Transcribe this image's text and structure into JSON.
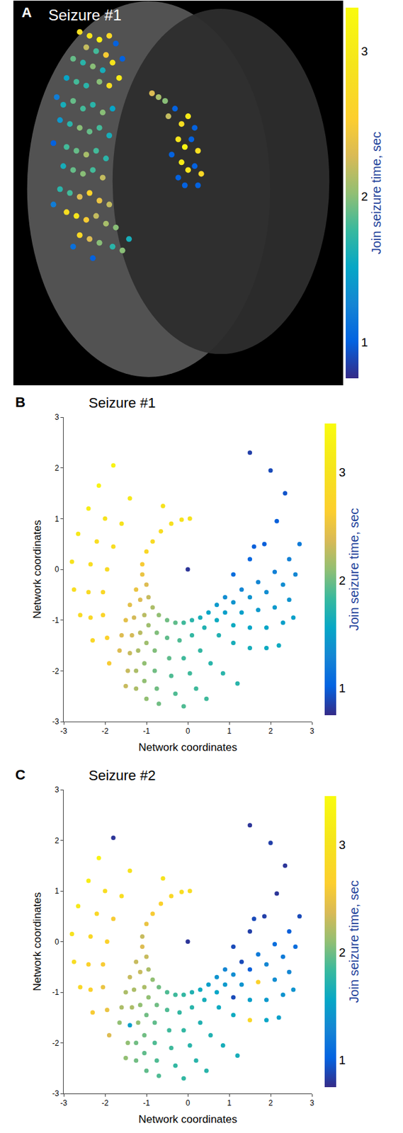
{
  "chart_data": [
    {
      "type": "scatter",
      "panel": "A",
      "title": "Seizure #1",
      "grid": false,
      "tick_labels": false,
      "xlim": [
        0,
        100
      ],
      "ylim": [
        0,
        100
      ],
      "color_label": "Join seizure time, sec",
      "color_range": [
        0.75,
        3.3
      ],
      "color_ticks": [
        1,
        2,
        3
      ],
      "x": [
        20,
        23,
        26,
        29,
        31,
        22,
        25,
        28,
        18,
        21,
        30,
        33,
        24,
        27,
        16,
        19,
        22,
        26,
        29,
        32,
        13,
        15,
        18,
        21,
        24,
        27,
        30,
        14,
        17,
        20,
        23,
        26,
        29,
        12,
        16,
        19,
        22,
        25,
        28,
        15,
        18,
        21,
        24,
        27,
        14,
        17,
        20,
        23,
        26,
        29,
        16,
        19,
        22,
        25,
        28,
        31,
        20,
        23,
        26,
        30,
        33,
        12,
        18,
        24,
        35,
        47,
        49,
        51,
        53,
        55,
        50,
        52,
        54,
        56,
        48,
        51,
        53,
        55,
        57,
        50,
        52,
        46,
        42,
        44,
        56
      ],
      "y": [
        92,
        91,
        90,
        91,
        89,
        88,
        87,
        86,
        85,
        84,
        84,
        85,
        83,
        82,
        80,
        79,
        78,
        79,
        78,
        80,
        75,
        73,
        74,
        72,
        73,
        71,
        72,
        69,
        68,
        67,
        66,
        67,
        65,
        63,
        62,
        61,
        60,
        61,
        59,
        57,
        56,
        55,
        56,
        54,
        51,
        50,
        49,
        50,
        48,
        47,
        45,
        44,
        43,
        44,
        42,
        41,
        39,
        38,
        37,
        36,
        35,
        47,
        36,
        33,
        38,
        70,
        72,
        68,
        70,
        67,
        64,
        62,
        64,
        61,
        60,
        58,
        56,
        57,
        55,
        54,
        52,
        74,
        76,
        75,
        52
      ],
      "join_time": [
        2.8,
        2.9,
        3.1,
        2.7,
        1.0,
        2.2,
        1.8,
        2.5,
        1.9,
        1.7,
        2.9,
        1.0,
        2.0,
        1.6,
        1.5,
        1.8,
        1.7,
        2.0,
        2.8,
        3.0,
        1.2,
        1.6,
        1.9,
        1.8,
        1.7,
        2.0,
        1.5,
        1.4,
        1.7,
        2.0,
        1.9,
        1.8,
        1.6,
        1.0,
        1.8,
        1.9,
        2.1,
        1.8,
        1.7,
        1.6,
        1.9,
        2.0,
        1.8,
        2.2,
        1.7,
        1.8,
        2.3,
        2.6,
        2.4,
        2.2,
        2.8,
        2.9,
        2.5,
        2.2,
        2.1,
        2.0,
        2.7,
        2.3,
        2.0,
        1.7,
        2.0,
        1.2,
        1.1,
        1.0,
        1.6,
        2.2,
        1.0,
        2.8,
        3.0,
        1.0,
        2.9,
        3.2,
        1.0,
        2.8,
        1.0,
        3.0,
        2.9,
        1.0,
        2.7,
        1.0,
        1.0,
        2.0,
        2.3,
        2.1,
        1.0
      ]
    },
    {
      "type": "scatter",
      "panel": "B",
      "title": "Seizure #1",
      "grid": false,
      "xlabel": "Network coordinates",
      "ylabel": "Network coordinates",
      "xlim": [
        -3,
        3
      ],
      "ylim": [
        -3,
        3
      ],
      "xticks": [
        -3,
        -2,
        -1,
        0,
        1,
        2,
        3
      ],
      "yticks": [
        -3,
        -2,
        -1,
        0,
        1,
        2,
        3
      ],
      "color_label": "Join seizure time, sec",
      "color_range": [
        0.75,
        3.45
      ],
      "color_ticks": [
        1,
        2,
        3
      ],
      "x": [
        -1.1,
        -1.0,
        -0.85,
        -0.65,
        -0.4,
        -0.15,
        0.05,
        -1.8,
        -2.15,
        -2.4,
        -2.65,
        -2.8,
        -2.75,
        -2.6,
        -1.4,
        -0.6,
        -2.0,
        -2.2,
        -2.35,
        -2.4,
        -2.35,
        -2.3,
        -1.6,
        -1.8,
        -1.95,
        -2.05,
        -2.05,
        -1.95,
        -1.9,
        0,
        -1.1,
        -1.25,
        -1.4,
        -1.5,
        -1.6,
        -1.65,
        -1.0,
        -1.15,
        -1.3,
        -1.35,
        -1.4,
        -1.45,
        -1.5,
        -0.95,
        -1.05,
        -1.15,
        -1.2,
        -1.25,
        -1.25,
        -0.85,
        -0.95,
        -1.0,
        -1.05,
        -1.05,
        -1.0,
        -0.7,
        -0.75,
        -0.8,
        -0.8,
        -0.75,
        -0.7,
        -0.5,
        -0.5,
        -0.45,
        -0.4,
        -0.3,
        -0.1,
        -0.3,
        -0.2,
        -0.1,
        0.05,
        0.2,
        0.45,
        -0.1,
        0.1,
        0.3,
        0.55,
        0.85,
        1.2,
        0.1,
        0.4,
        0.75,
        1.1,
        1.5,
        1.9,
        2.2,
        0.3,
        0.7,
        1.1,
        1.5,
        1.9,
        2.3,
        2.55,
        0.5,
        0.9,
        1.3,
        1.7,
        2.1,
        2.45,
        0.7,
        1.1,
        1.5,
        1.9,
        2.3,
        2.6,
        0.9,
        1.3,
        1.7,
        2.1,
        2.45,
        2.7,
        1.1,
        1.5,
        1.85,
        2.15,
        2.35,
        2.0,
        1.5,
        1.6
      ],
      "y": [
        0.1,
        0.35,
        0.55,
        0.75,
        0.9,
        0.98,
        1.0,
        2.05,
        1.65,
        1.2,
        0.7,
        0.15,
        -0.4,
        -0.9,
        1.4,
        1.25,
        1.0,
        0.55,
        0.1,
        -0.45,
        -0.95,
        -1.4,
        0.9,
        0.45,
        0.0,
        -0.45,
        -0.9,
        -1.35,
        -1.85,
        0,
        -0.1,
        -0.4,
        -0.7,
        -1.0,
        -1.3,
        -1.6,
        -0.3,
        -0.6,
        -0.95,
        -1.3,
        -1.65,
        -2.0,
        -2.3,
        -0.55,
        -0.9,
        -1.25,
        -1.6,
        -2.0,
        -2.35,
        -0.75,
        -1.1,
        -1.45,
        -1.85,
        -2.2,
        -2.55,
        -0.9,
        -1.25,
        -1.6,
        -2.0,
        -2.35,
        -2.65,
        -1.0,
        -1.35,
        -1.75,
        -2.1,
        -2.45,
        -2.7,
        -1.05,
        -1.4,
        -1.75,
        -2.05,
        -2.35,
        -2.55,
        -1.05,
        -1.3,
        -1.6,
        -1.85,
        -2.05,
        -2.25,
        -1.0,
        -1.15,
        -1.3,
        -1.45,
        -1.55,
        -1.55,
        -1.5,
        -0.95,
        -1.0,
        -1.1,
        -1.15,
        -1.15,
        -1.05,
        -0.95,
        -0.85,
        -0.85,
        -0.85,
        -0.8,
        -0.75,
        -0.6,
        -0.7,
        -0.65,
        -0.55,
        -0.45,
        -0.3,
        -0.1,
        -0.55,
        -0.4,
        -0.25,
        -0.05,
        0.2,
        0.5,
        -0.1,
        0.2,
        0.5,
        0.95,
        1.5,
        1.95,
        2.3,
        0.45
      ],
      "join_time": [
        2.6,
        2.8,
        2.85,
        2.9,
        2.95,
        3.0,
        3.0,
        3.3,
        3.3,
        3.2,
        3.1,
        3.0,
        2.9,
        2.85,
        3.1,
        3.0,
        3.0,
        2.9,
        2.9,
        2.85,
        2.8,
        2.8,
        3.0,
        2.9,
        2.85,
        2.8,
        2.75,
        2.7,
        2.6,
        0.8,
        2.5,
        2.5,
        2.45,
        2.45,
        2.4,
        2.4,
        2.4,
        2.4,
        2.35,
        2.35,
        2.3,
        2.3,
        2.3,
        2.3,
        2.25,
        2.25,
        2.2,
        2.2,
        2.2,
        2.2,
        2.15,
        2.15,
        2.1,
        2.1,
        2.1,
        2.1,
        2.05,
        2.05,
        2.0,
        2.0,
        2.0,
        2.0,
        1.95,
        1.95,
        1.9,
        1.9,
        1.9,
        1.95,
        1.9,
        1.85,
        1.85,
        1.85,
        1.85,
        1.85,
        1.8,
        1.8,
        1.75,
        1.75,
        1.75,
        1.75,
        1.7,
        1.7,
        1.65,
        1.65,
        1.6,
        1.6,
        1.65,
        1.6,
        1.6,
        1.55,
        1.55,
        1.5,
        1.5,
        1.55,
        1.5,
        1.5,
        1.45,
        1.45,
        1.4,
        1.45,
        1.4,
        1.4,
        1.35,
        1.35,
        1.3,
        1.35,
        1.3,
        1.3,
        1.25,
        1.25,
        1.2,
        1.1,
        1.05,
        1.0,
        1.0,
        0.95,
        0.9,
        0.85,
        1.0
      ]
    },
    {
      "type": "scatter",
      "panel": "C",
      "title": "Seizure #2",
      "grid": false,
      "xlabel": "Network coordinates",
      "ylabel": "Network coordinates",
      "xlim": [
        -3,
        3
      ],
      "ylim": [
        -3,
        3
      ],
      "xticks": [
        -3,
        -2,
        -1,
        0,
        1,
        2,
        3
      ],
      "yticks": [
        -3,
        -2,
        -1,
        0,
        1,
        2,
        3
      ],
      "color_label": "Join seizure time, sec",
      "color_range": [
        0.75,
        3.45
      ],
      "color_ticks": [
        1,
        2,
        3
      ],
      "x": [
        -1.1,
        -1.0,
        -0.85,
        -0.65,
        -0.4,
        -0.15,
        0.05,
        -1.8,
        -2.15,
        -2.4,
        -2.65,
        -2.8,
        -2.75,
        -2.6,
        -1.4,
        -0.6,
        -2.0,
        -2.2,
        -2.35,
        -2.4,
        -2.35,
        -2.3,
        -1.6,
        -1.8,
        -1.95,
        -2.05,
        -2.05,
        -1.95,
        -1.9,
        0,
        -1.1,
        -1.25,
        -1.4,
        -1.5,
        -1.6,
        -1.65,
        -1.0,
        -1.15,
        -1.3,
        -1.35,
        -1.4,
        -1.45,
        -1.5,
        -0.95,
        -1.05,
        -1.15,
        -1.2,
        -1.25,
        -1.25,
        -0.85,
        -0.95,
        -1.0,
        -1.05,
        -1.05,
        -1.0,
        -0.7,
        -0.75,
        -0.8,
        -0.8,
        -0.75,
        -0.7,
        -0.5,
        -0.5,
        -0.45,
        -0.4,
        -0.3,
        -0.1,
        -0.3,
        -0.2,
        -0.1,
        0.05,
        0.2,
        0.45,
        -0.1,
        0.1,
        0.3,
        0.55,
        0.85,
        1.2,
        0.1,
        0.4,
        0.75,
        1.1,
        1.5,
        1.9,
        2.2,
        0.3,
        0.7,
        1.1,
        1.5,
        1.9,
        2.3,
        2.55,
        0.5,
        0.9,
        1.3,
        1.7,
        2.1,
        2.45,
        0.7,
        1.1,
        1.5,
        1.9,
        2.3,
        2.6,
        0.9,
        1.3,
        1.7,
        2.1,
        2.45,
        2.7,
        1.1,
        1.5,
        1.85,
        2.15,
        2.35,
        2.0,
        1.5,
        1.6
      ],
      "y": [
        0.1,
        0.35,
        0.55,
        0.75,
        0.9,
        0.98,
        1.0,
        2.05,
        1.65,
        1.2,
        0.7,
        0.15,
        -0.4,
        -0.9,
        1.4,
        1.25,
        1.0,
        0.55,
        0.1,
        -0.45,
        -0.95,
        -1.4,
        0.9,
        0.45,
        0.0,
        -0.45,
        -0.9,
        -1.35,
        -1.85,
        0,
        -0.1,
        -0.4,
        -0.7,
        -1.0,
        -1.3,
        -1.6,
        -0.3,
        -0.6,
        -0.95,
        -1.3,
        -1.65,
        -2.0,
        -2.3,
        -0.55,
        -0.9,
        -1.25,
        -1.6,
        -2.0,
        -2.35,
        -0.75,
        -1.1,
        -1.45,
        -1.85,
        -2.2,
        -2.55,
        -0.9,
        -1.25,
        -1.6,
        -2.0,
        -2.35,
        -2.65,
        -1.0,
        -1.35,
        -1.75,
        -2.1,
        -2.45,
        -2.7,
        -1.05,
        -1.4,
        -1.75,
        -2.05,
        -2.35,
        -2.55,
        -1.05,
        -1.3,
        -1.6,
        -1.85,
        -2.05,
        -2.25,
        -1.0,
        -1.15,
        -1.3,
        -1.45,
        -1.55,
        -1.55,
        -1.5,
        -0.95,
        -1.0,
        -1.1,
        -1.15,
        -1.15,
        -1.05,
        -0.95,
        -0.85,
        -0.85,
        -0.85,
        -0.8,
        -0.75,
        -0.6,
        -0.7,
        -0.65,
        -0.55,
        -0.45,
        -0.3,
        -0.1,
        -0.55,
        -0.4,
        -0.25,
        -0.05,
        0.2,
        0.5,
        -0.1,
        0.2,
        0.5,
        0.95,
        1.5,
        1.95,
        2.3,
        0.45
      ],
      "join_time": [
        2.3,
        2.5,
        2.6,
        2.7,
        2.8,
        2.9,
        2.9,
        0.8,
        3.3,
        3.2,
        3.1,
        3.0,
        2.9,
        2.8,
        3.0,
        3.0,
        2.9,
        2.8,
        2.8,
        2.7,
        2.7,
        2.6,
        2.9,
        2.6,
        2.7,
        2.6,
        2.5,
        2.5,
        2.4,
        0.8,
        2.4,
        2.3,
        2.3,
        2.2,
        2.2,
        2.1,
        2.3,
        2.3,
        2.2,
        2.2,
        1.5,
        2.1,
        2.1,
        2.2,
        2.2,
        2.1,
        2.1,
        2.0,
        2.0,
        2.1,
        2.1,
        2.0,
        2.0,
        1.95,
        1.95,
        2.0,
        2.0,
        1.95,
        1.9,
        1.9,
        1.9,
        1.9,
        1.9,
        1.85,
        1.85,
        1.8,
        1.8,
        1.85,
        1.8,
        1.8,
        1.75,
        1.75,
        1.75,
        1.8,
        1.75,
        1.7,
        1.7,
        1.65,
        1.65,
        1.7,
        1.65,
        1.6,
        1.6,
        2.8,
        1.55,
        1.5,
        1.6,
        1.55,
        0.9,
        1.5,
        1.45,
        1.4,
        1.4,
        1.5,
        1.45,
        1.4,
        2.7,
        1.35,
        1.3,
        1.4,
        1.35,
        1.0,
        1.3,
        1.2,
        1.1,
        1.3,
        0.9,
        1.2,
        1.1,
        1.0,
        0.9,
        0.9,
        0.85,
        0.85,
        0.8,
        0.8,
        0.85,
        0.8,
        0.9
      ]
    }
  ]
}
